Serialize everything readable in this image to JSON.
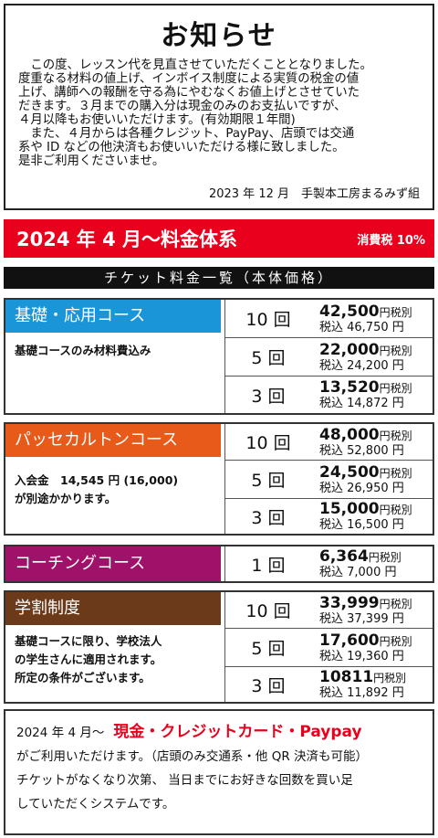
{
  "notice": {
    "title": "お知らせ",
    "body": "　この度、レッスン代を見直させていただくこととなりました。\n度重なる材料の値上げ、インボイス制度による実質の税金の値\n上げ、講師への報酬を守る為にやむなくお値上げとさせていた\nだきます。３月までの購入分は現金のみのお支払いですが、\n４月以降もお使いいただけます。(有効期限１年間)\n　また、４月からは各種クレジット、PayPay、店頭では交通\n系や ID などの他決済もお使いいただける様に致しました。\n是非ご利用くださいませ。",
    "signature": "2023 年 12 月　手製本工房まるみず組"
  },
  "banner": {
    "title": "2024 年 4 月〜料金体系",
    "tax": "消費税 10%"
  },
  "ticket_header": "チケット料金一覧（本体価格）",
  "courses": [
    {
      "name": "基礎・応用コース",
      "color": "#1a96d8",
      "note": "基礎コースのみ材料費込み",
      "rows": [
        {
          "count": "10 回",
          "price": "42,500",
          "suffix": "円税別",
          "tax": "税込 46,750 円"
        },
        {
          "count": "5 回",
          "price": "22,000",
          "suffix": "円税別",
          "tax": "税込 24,200 円"
        },
        {
          "count": "3 回",
          "price": "13,520",
          "suffix": "円税別",
          "tax": "税込 14,872 円"
        }
      ]
    },
    {
      "name": "パッセカルトンコース",
      "color": "#e85a1a",
      "note": "入会金　14,545 円 (16,000)\nが別途かかります。",
      "rows": [
        {
          "count": "10 回",
          "price": "48,000",
          "suffix": "円税別",
          "tax": "税込 52,800 円"
        },
        {
          "count": "5 回",
          "price": "24,500",
          "suffix": "円税別",
          "tax": "税込 26,950 円"
        },
        {
          "count": "3 回",
          "price": "15,000",
          "suffix": "円税別",
          "tax": "税込 16,500 円"
        }
      ]
    },
    {
      "name": "コーチングコース",
      "color": "#a0126a",
      "note": "",
      "rows": [
        {
          "count": "1 回",
          "price": "6,364",
          "suffix": "円税別",
          "tax": "税込 7,000 円"
        }
      ]
    },
    {
      "name": "学割制度",
      "color": "#6a3a1a",
      "note": "基礎コースに限り、学校法人\nの学生さんに適用されます。\n所定の条件がございます。",
      "rows": [
        {
          "count": "10 回",
          "price": "33,999",
          "suffix": "円税別",
          "tax": "税込 37,399 円"
        },
        {
          "count": "5 回",
          "price": "17,600",
          "suffix": "円税別",
          "tax": "税込 19,360 円"
        },
        {
          "count": "3 回",
          "price": "10811",
          "suffix": "円税別",
          "tax": "税込 11,892 円"
        }
      ]
    }
  ],
  "footer": {
    "date": "2024 年 4 月〜",
    "accent": "現金・クレジットカード・Paypay",
    "line2": "がご利用いただけます。（店頭のみ交通系・他 QR 決済も可能）",
    "line3": "チケットがなくなり次第、 当日までにお好きな回数を買い足",
    "line4": "していただくシステムです。"
  }
}
